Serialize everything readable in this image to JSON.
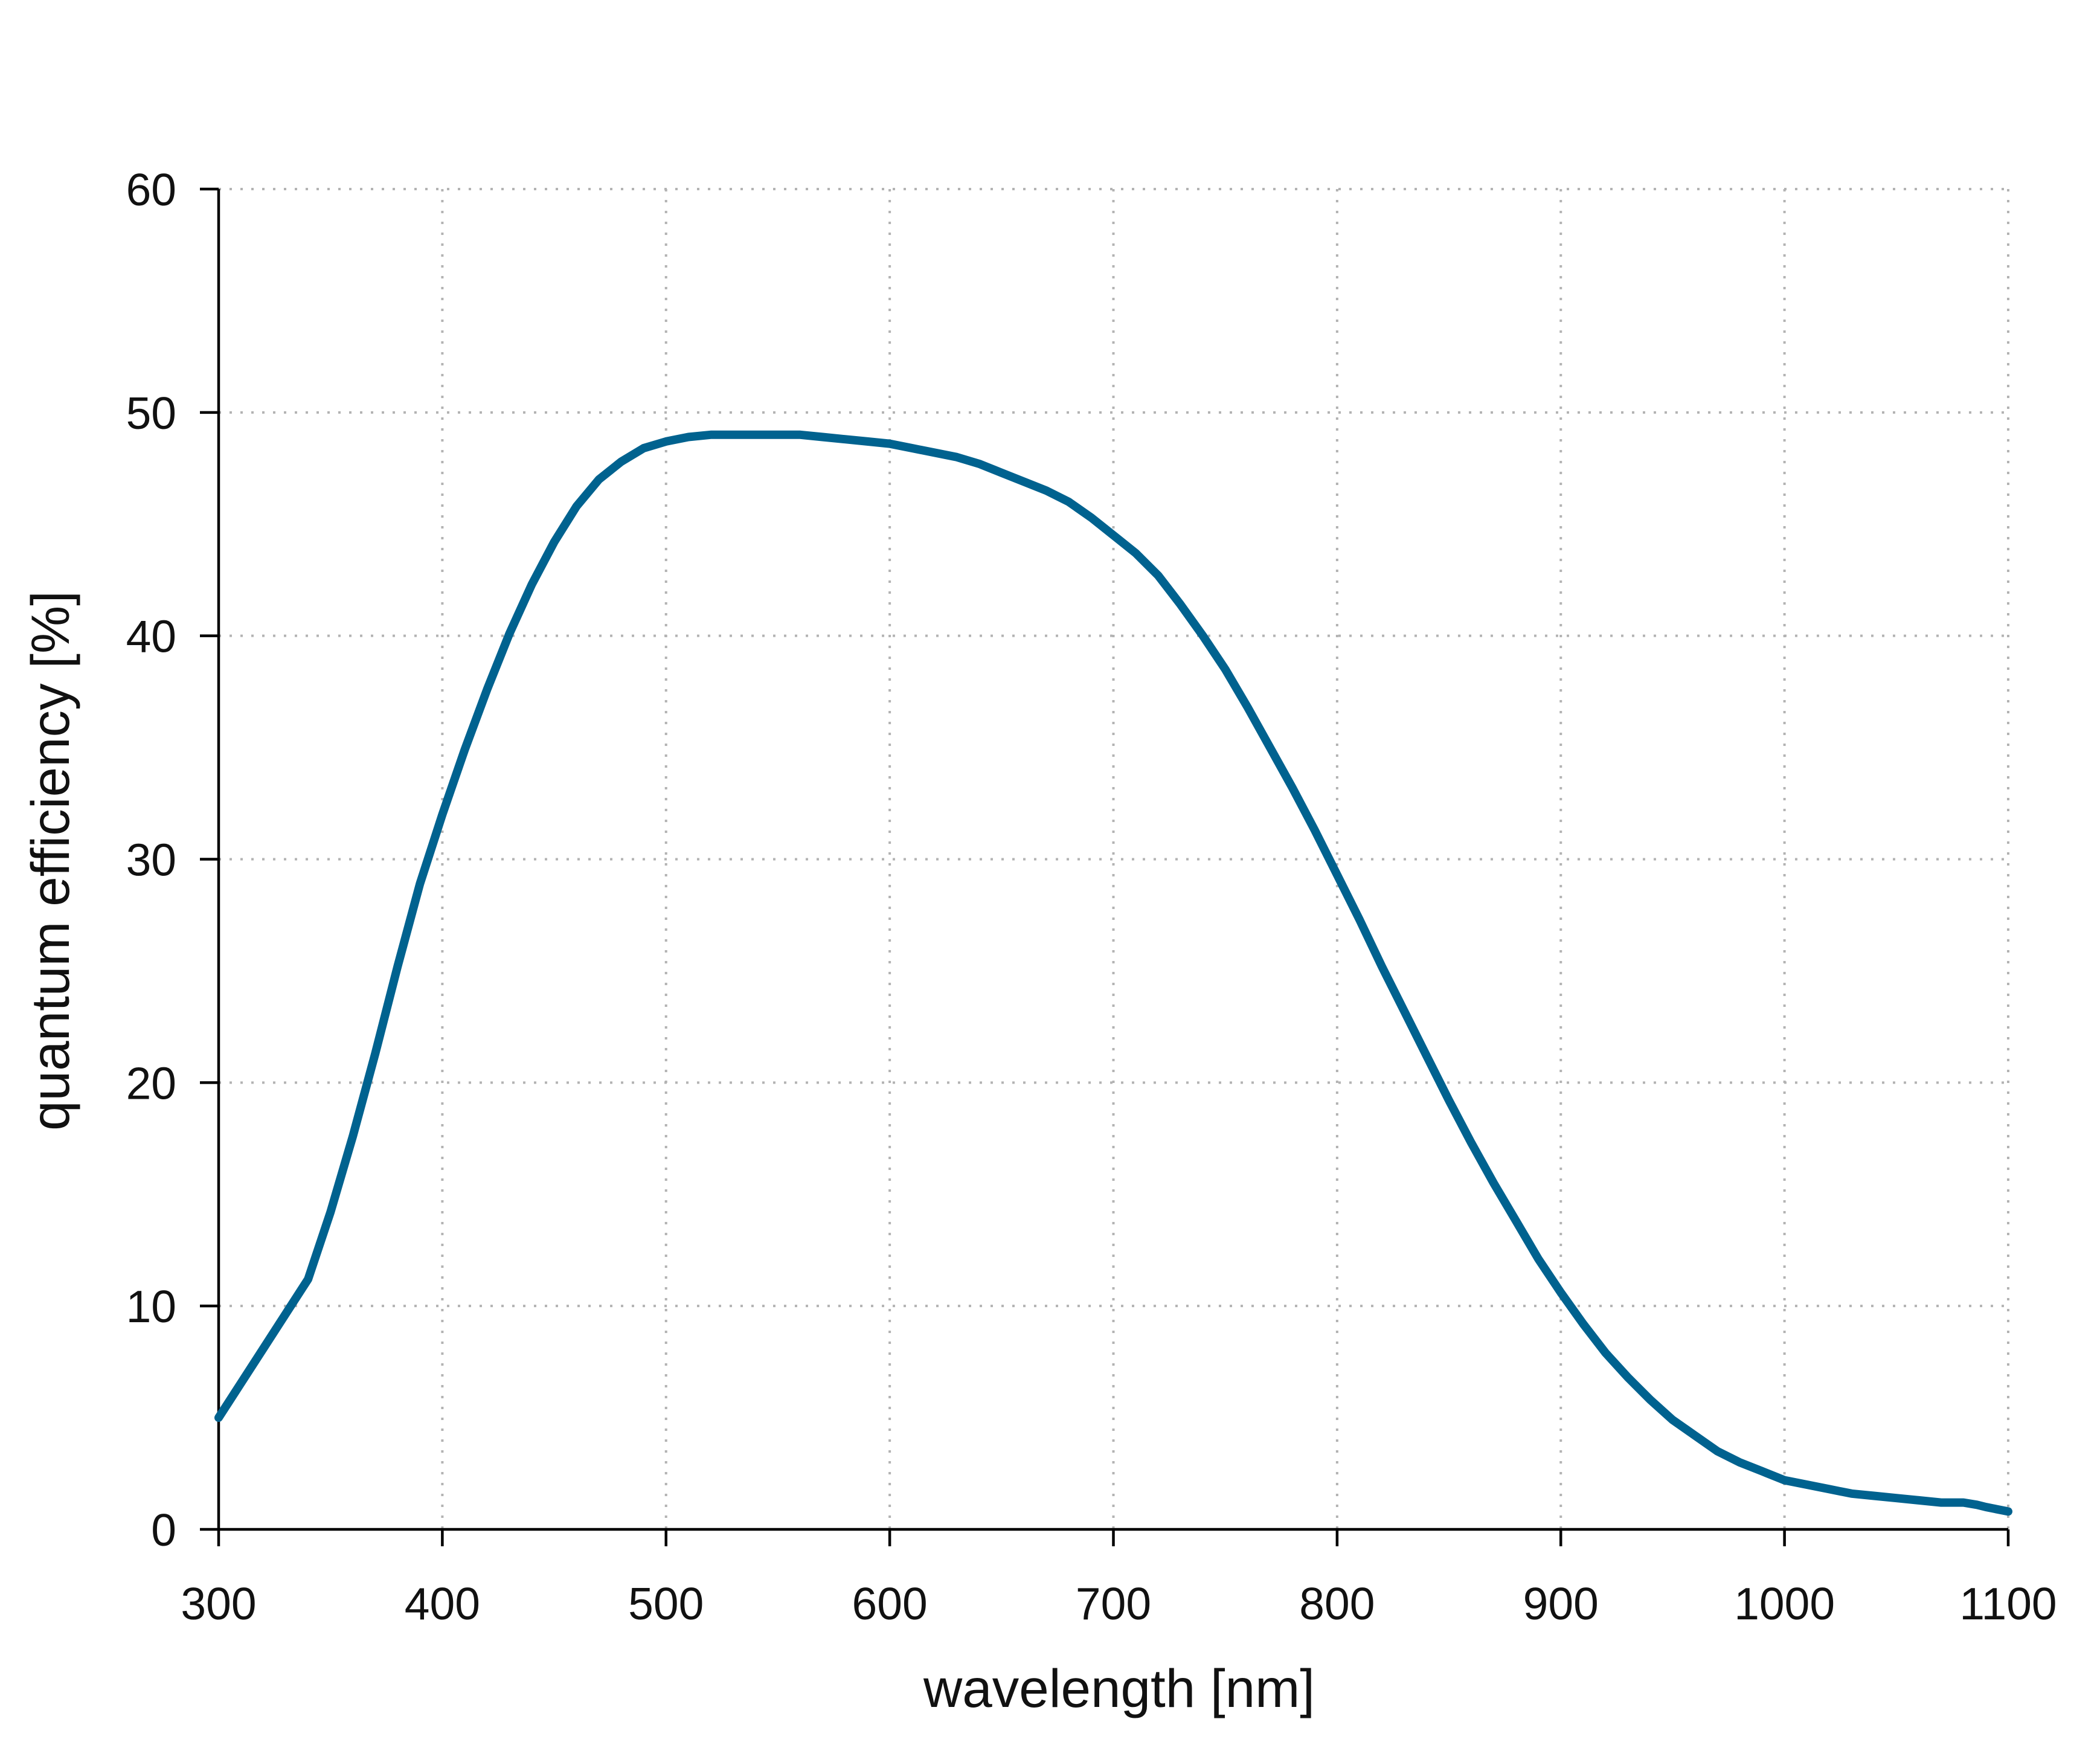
{
  "chart_data": {
    "type": "line",
    "title": "",
    "xlabel": "wavelength [nm]",
    "ylabel": "quantum efficiency [%]",
    "xlim": [
      300,
      1100
    ],
    "ylim": [
      0,
      60
    ],
    "x_ticks": [
      300,
      400,
      500,
      600,
      700,
      800,
      900,
      1000,
      1100
    ],
    "y_ticks": [
      0,
      10,
      20,
      30,
      40,
      50,
      60
    ],
    "grid": true,
    "legend": "none",
    "series": [
      {
        "name": "quantum efficiency",
        "color": "#00628f",
        "x": [
          300,
          320,
          340,
          350,
          360,
          370,
          380,
          390,
          400,
          410,
          420,
          430,
          440,
          450,
          460,
          470,
          480,
          490,
          500,
          510,
          520,
          530,
          540,
          550,
          560,
          570,
          580,
          590,
          600,
          610,
          620,
          630,
          640,
          650,
          660,
          670,
          680,
          690,
          700,
          710,
          720,
          730,
          740,
          750,
          760,
          770,
          780,
          790,
          800,
          810,
          820,
          830,
          840,
          850,
          860,
          870,
          880,
          890,
          900,
          910,
          920,
          930,
          940,
          950,
          960,
          970,
          980,
          990,
          1000,
          1010,
          1020,
          1030,
          1040,
          1050,
          1060,
          1070,
          1080,
          1086,
          1090,
          1095,
          1100
        ],
        "values": [
          5.0,
          8.1,
          11.2,
          14.2,
          17.6,
          21.3,
          25.2,
          28.9,
          32.0,
          34.9,
          37.6,
          40.1,
          42.3,
          44.2,
          45.8,
          47.0,
          47.8,
          48.4,
          48.7,
          48.9,
          49.0,
          49.0,
          49.0,
          49.0,
          49.0,
          48.9,
          48.8,
          48.7,
          48.6,
          48.4,
          48.2,
          48.0,
          47.7,
          47.3,
          46.9,
          46.5,
          46.0,
          45.3,
          44.5,
          43.7,
          42.7,
          41.4,
          40.0,
          38.5,
          36.8,
          35.0,
          33.2,
          31.3,
          29.3,
          27.3,
          25.2,
          23.2,
          21.2,
          19.2,
          17.3,
          15.5,
          13.8,
          12.1,
          10.6,
          9.2,
          7.9,
          6.8,
          5.8,
          4.9,
          4.2,
          3.5,
          3.0,
          2.6,
          2.2,
          2.0,
          1.8,
          1.6,
          1.5,
          1.4,
          1.3,
          1.2,
          1.2,
          1.1,
          1.0,
          0.9,
          0.8
        ]
      }
    ]
  }
}
